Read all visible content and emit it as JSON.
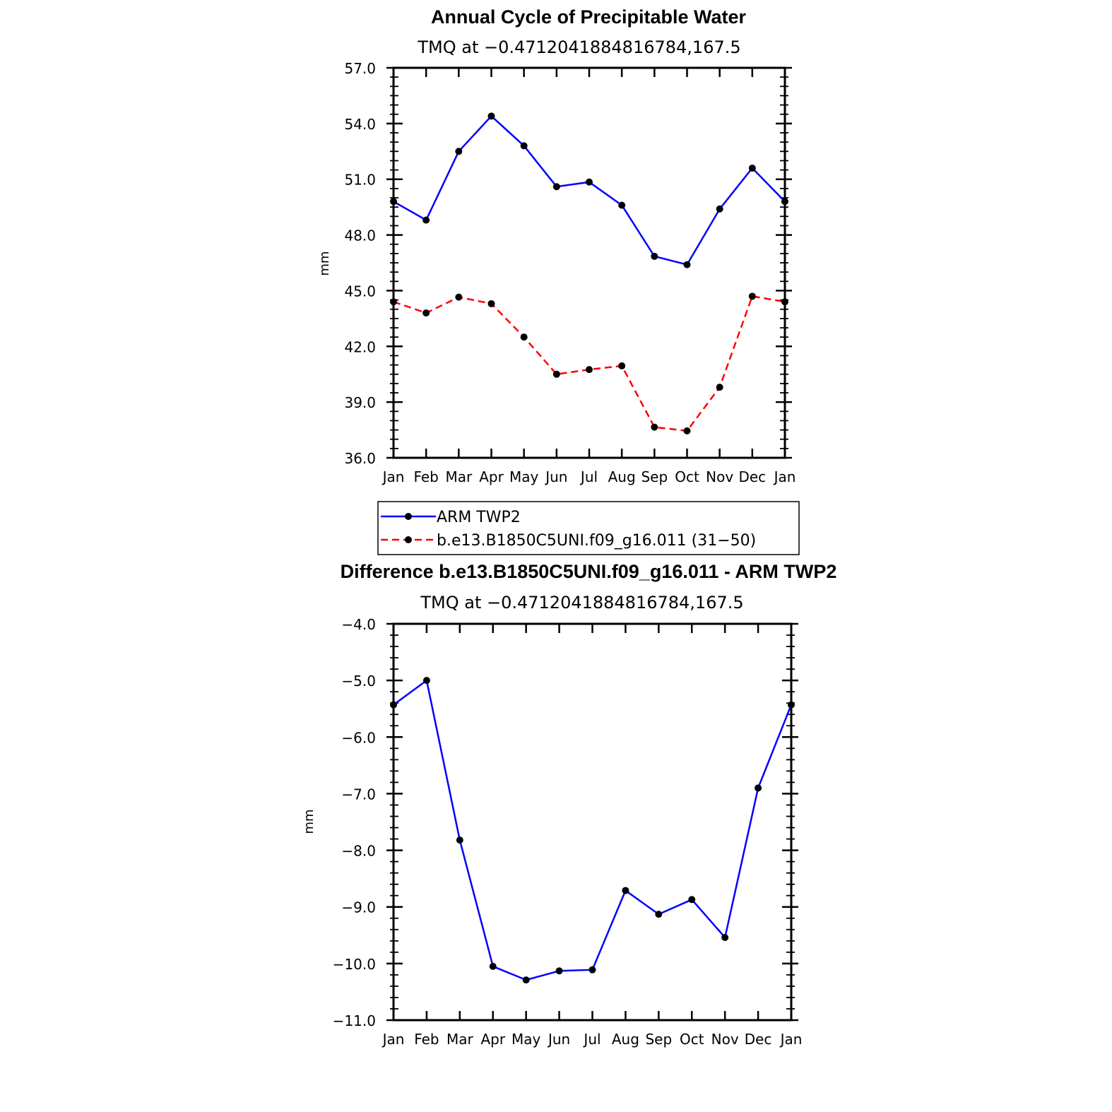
{
  "chart_data": [
    {
      "type": "line",
      "title": "Annual Cycle of Precipitable Water",
      "subtitle": "TMQ at −0.4712041884816784,167.5",
      "xlabel": "",
      "ylabel": "mm",
      "categories": [
        "Jan",
        "Feb",
        "Mar",
        "Apr",
        "May",
        "Jun",
        "Jul",
        "Aug",
        "Sep",
        "Oct",
        "Nov",
        "Dec",
        "Jan"
      ],
      "ylim": [
        36.0,
        57.0
      ],
      "yticks": [
        "36.0",
        "39.0",
        "42.0",
        "45.0",
        "48.0",
        "51.0",
        "54.0",
        "57.0"
      ],
      "grid": false,
      "series": [
        {
          "name": "ARM TWP2",
          "color": "#0000ff",
          "dash": "solid",
          "values": [
            49.8,
            48.8,
            52.5,
            54.4,
            52.8,
            50.6,
            50.85,
            49.6,
            46.85,
            46.4,
            49.4,
            51.6,
            49.8
          ]
        },
        {
          "name": "b.e13.B1850C5UNI.f09_g16.011 (31−50)",
          "color": "#ff0000",
          "dash": "dashed",
          "values": [
            44.4,
            43.8,
            44.65,
            44.3,
            42.5,
            40.5,
            40.75,
            40.95,
            37.65,
            37.45,
            39.8,
            44.7,
            44.4
          ]
        }
      ],
      "legend": {
        "position": "below",
        "entries": [
          "ARM TWP2",
          "b.e13.B1850C5UNI.f09_g16.011 (31−50)"
        ]
      }
    },
    {
      "type": "line",
      "title": "Difference b.e13.B1850C5UNI.f09_g16.011 - ARM TWP2",
      "subtitle": "TMQ at −0.4712041884816784,167.5",
      "xlabel": "",
      "ylabel": "mm",
      "categories": [
        "Jan",
        "Feb",
        "Mar",
        "Apr",
        "May",
        "Jun",
        "Jul",
        "Aug",
        "Sep",
        "Oct",
        "Nov",
        "Dec",
        "Jan"
      ],
      "ylim": [
        -11.0,
        -4.0
      ],
      "yticks": [
        "−11.0",
        "−10.0",
        "−9.0",
        "−8.0",
        "−7.0",
        "−6.0",
        "−5.0",
        "−4.0"
      ],
      "grid": false,
      "series": [
        {
          "color": "#0000ff",
          "dash": "solid",
          "values": [
            -5.43,
            -5.0,
            -7.82,
            -10.05,
            -10.29,
            -10.13,
            -10.11,
            -8.71,
            -9.13,
            -8.87,
            -9.54,
            -6.9,
            -5.43
          ]
        }
      ]
    }
  ]
}
